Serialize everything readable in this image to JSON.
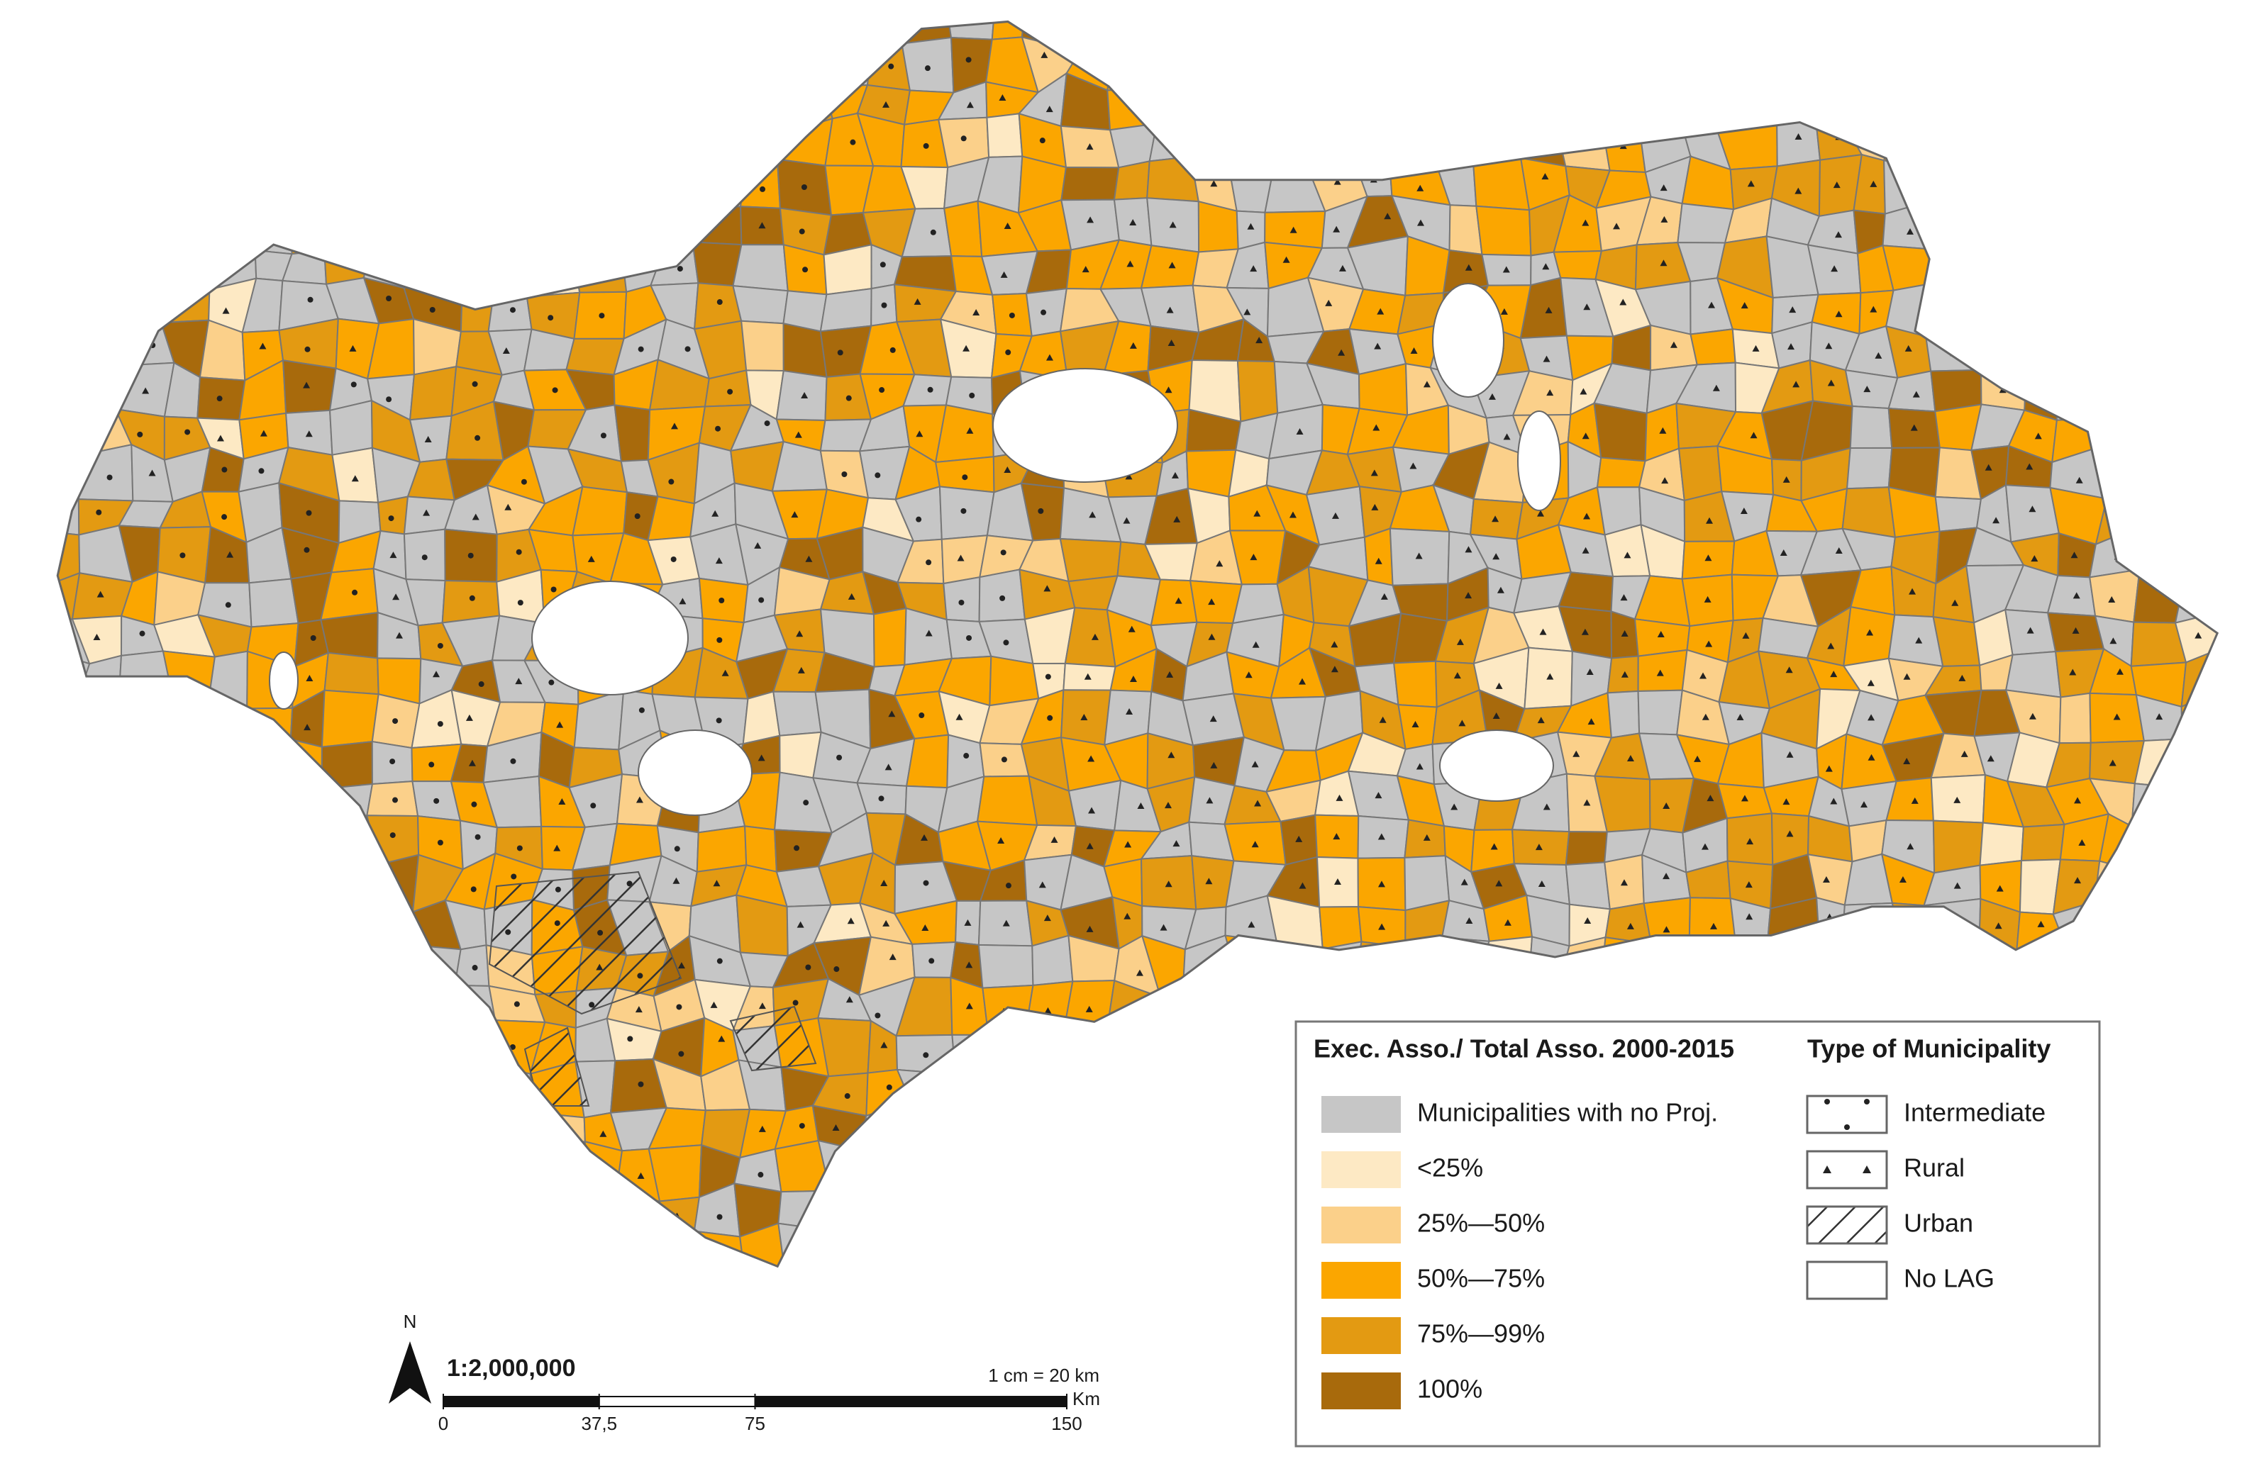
{
  "north": "N",
  "legend": {
    "fill_title": "Exec. Asso./ Total Asso. 2000-2015",
    "fill_items": [
      {
        "label": "Municipalities with no Proj.",
        "color": "#c6c6c6"
      },
      {
        "label": "<25%",
        "color": "#fde9c4"
      },
      {
        "label": "25%—50%",
        "color": "#fbd08a"
      },
      {
        "label": "50%—75%",
        "color": "#fba600"
      },
      {
        "label": "75%—99%",
        "color": "#e39a12"
      },
      {
        "label": "100%",
        "color": "#a86a0c"
      }
    ],
    "type_title": "Type of Municipality",
    "type_items": [
      {
        "label": "Intermediate",
        "pattern": "dots"
      },
      {
        "label": "Rural",
        "pattern": "triangles"
      },
      {
        "label": "Urban",
        "pattern": "hatch"
      },
      {
        "label": "No LAG",
        "pattern": "none"
      }
    ]
  },
  "scale": {
    "ratio": "1:2,000,000",
    "note": "1 cm = 20 km",
    "unit": "Km",
    "xlim": [
      0,
      150
    ],
    "ticks": [
      0,
      {
        "value": 37.5,
        "label": "37,5"
      },
      75,
      150
    ]
  }
}
